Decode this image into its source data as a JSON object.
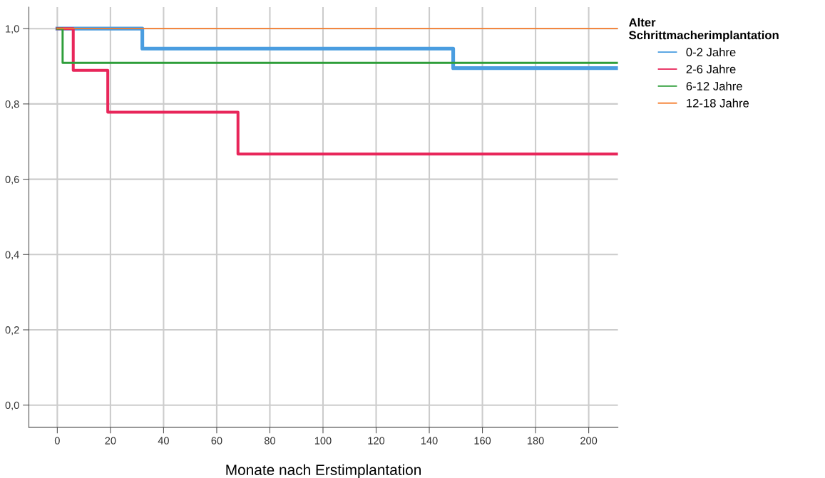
{
  "chart_data": {
    "type": "step",
    "xlabel": "Monate nach Erstimplantation",
    "legend_title": "Alter\nSchrittmacherimplantation",
    "legend": "right",
    "grid": true,
    "marker": "none",
    "line_style": "solid",
    "xlim": [
      -10.7,
      211
    ],
    "ylim": [
      -0.059,
      1.057
    ],
    "xticks": [
      0,
      20,
      40,
      60,
      80,
      100,
      120,
      140,
      160,
      180,
      200
    ],
    "yticks": [
      {
        "value": 0,
        "label": "0,0"
      },
      {
        "value": 0.2,
        "label": "0,2"
      },
      {
        "value": 0.4,
        "label": "0,4"
      },
      {
        "value": 0.6,
        "label": "0,6"
      },
      {
        "value": 0.8,
        "label": "0,8"
      },
      {
        "value": 1.0,
        "label": "1,0"
      }
    ],
    "series": [
      {
        "name": "0-2 Jahre",
        "color": "#4a9de0",
        "x": [
          0,
          32,
          149,
          211
        ],
        "values": [
          1.0,
          0.947,
          0.895,
          0.895
        ]
      },
      {
        "name": "2-6 Jahre",
        "color": "#e8265a",
        "x": [
          0,
          6,
          19,
          68,
          211
        ],
        "values": [
          1.0,
          0.889,
          0.778,
          0.667,
          0.667
        ]
      },
      {
        "name": "6-12 Jahre",
        "color": "#2e9e3a",
        "x": [
          0,
          2,
          211
        ],
        "values": [
          1.0,
          0.909,
          0.909
        ]
      },
      {
        "name": "12-18 Jahre",
        "color": "#f57b2a",
        "x": [
          0,
          211
        ],
        "values": [
          1.0,
          1.0
        ]
      }
    ]
  }
}
